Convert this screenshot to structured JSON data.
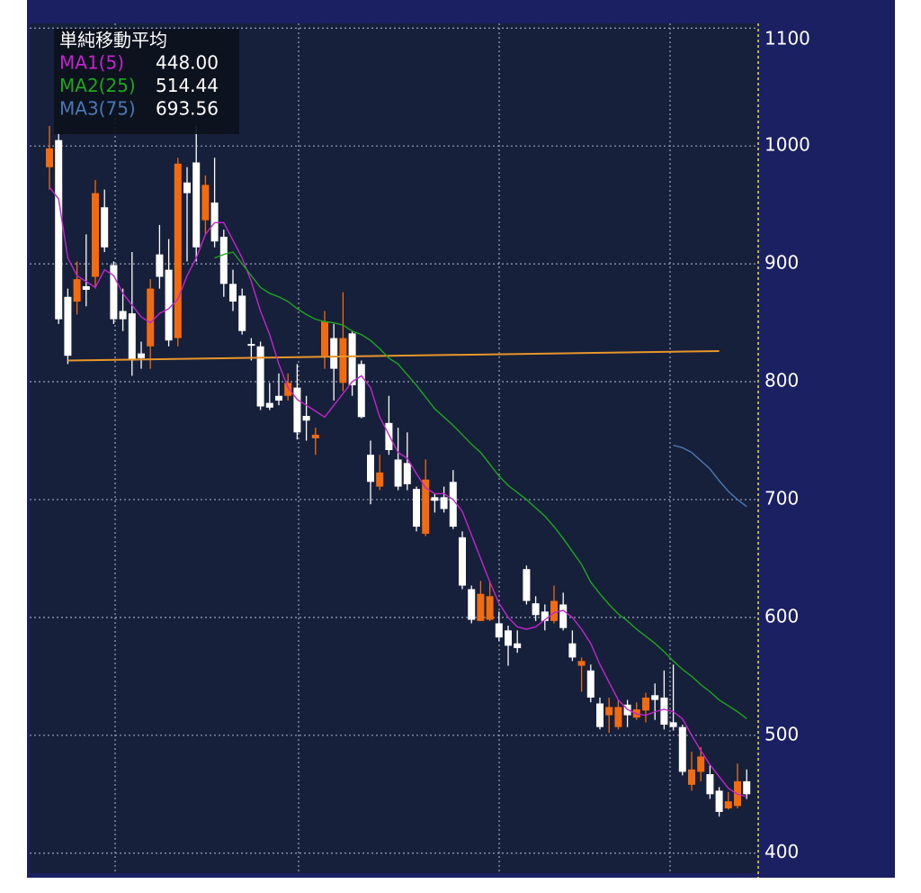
{
  "chart_data": {
    "type": "candlestick",
    "legend_title": "単純移動平均",
    "up_color": "#f26b0f",
    "down_color": "#ffffff",
    "ylim": [
      383,
      1104
    ],
    "yticks": [
      400,
      500,
      600,
      700,
      800,
      900,
      1000,
      1100
    ],
    "grid": true,
    "candles": {
      "open": [
        982,
        1005,
        872,
        868,
        881,
        889,
        948,
        899,
        860,
        858,
        824,
        830,
        908,
        895,
        837,
        969,
        986,
        937,
        952,
        923,
        883,
        873,
        832,
        830,
        782,
        788,
        788,
        795,
        771,
        752,
        822,
        837,
        799,
        841,
        815,
        738,
        711,
        765,
        734,
        731,
        709,
        671,
        702,
        702,
        715,
        668,
        624,
        597,
        598,
        595,
        589,
        578,
        641,
        612,
        605,
        597,
        611,
        578,
        559,
        555,
        527,
        517,
        507,
        526,
        515,
        521,
        534,
        532,
        511,
        507,
        458,
        469,
        467,
        453,
        438,
        440,
        461
      ],
      "high": [
        1017,
        1011,
        879,
        902,
        925,
        971,
        963,
        902,
        879,
        910,
        834,
        887,
        933,
        921,
        990,
        982,
        1017,
        975,
        990,
        929,
        895,
        879,
        837,
        834,
        799,
        807,
        807,
        815,
        788,
        761,
        860,
        849,
        876,
        843,
        818,
        750,
        738,
        788,
        761,
        757,
        711,
        734,
        705,
        711,
        725,
        673,
        627,
        631,
        631,
        605,
        593,
        589,
        644,
        618,
        611,
        627,
        621,
        589,
        566,
        560,
        532,
        532,
        530,
        530,
        528,
        536,
        544,
        555,
        560,
        509,
        486,
        490,
        475,
        456,
        452,
        476,
        471
      ],
      "low": [
        963,
        849,
        815,
        857,
        864,
        879,
        910,
        849,
        843,
        805,
        811,
        811,
        879,
        830,
        830,
        902,
        902,
        925,
        914,
        872,
        860,
        840,
        818,
        776,
        776,
        780,
        784,
        751,
        750,
        738,
        811,
        784,
        792,
        788,
        769,
        696,
        708,
        738,
        708,
        708,
        673,
        669,
        689,
        689,
        675,
        624,
        595,
        597,
        597,
        580,
        559,
        570,
        611,
        597,
        589,
        595,
        589,
        563,
        537,
        528,
        505,
        502,
        505,
        507,
        513,
        511,
        513,
        505,
        504,
        466,
        453,
        461,
        446,
        431,
        437,
        438,
        446
      ],
      "close": [
        998,
        853,
        822,
        887,
        878,
        960,
        914,
        853,
        853,
        818,
        820,
        879,
        889,
        835,
        985,
        960,
        914,
        967,
        919,
        883,
        868,
        843,
        831,
        779,
        778,
        784,
        799,
        757,
        767,
        755,
        851,
        811,
        837,
        797,
        770,
        715,
        723,
        742,
        711,
        713,
        677,
        717,
        699,
        692,
        677,
        627,
        598,
        620,
        618,
        583,
        576,
        574,
        614,
        602,
        597,
        614,
        591,
        566,
        563,
        532,
        507,
        524,
        524,
        517,
        522,
        532,
        530,
        509,
        507,
        469,
        471,
        482,
        450,
        435,
        444,
        461,
        450
      ]
    },
    "series": [
      {
        "name": "MA1(5)",
        "color": "#c424cc",
        "latest_label": "448.00",
        "values": [
          965,
          955,
          905,
          890,
          885,
          880,
          895,
          890,
          875,
          865,
          855,
          850,
          858,
          862,
          870,
          890,
          905,
          925,
          935,
          935,
          920,
          905,
          885,
          860,
          840,
          815,
          795,
          785,
          780,
          775,
          770,
          780,
          790,
          800,
          805,
          795,
          770,
          755,
          740,
          735,
          722,
          710,
          705,
          705,
          700,
          690,
          670,
          650,
          630,
          612,
          600,
          592,
          590,
          592,
          598,
          604,
          606,
          600,
          590,
          578,
          560,
          545,
          530,
          522,
          518,
          517,
          520,
          522,
          520,
          514,
          500,
          487,
          475,
          465,
          455,
          450,
          448
        ]
      },
      {
        "name": "MA2(25)",
        "color": "#1fa51f",
        "latest_label": "514.44",
        "values": [
          null,
          null,
          null,
          null,
          null,
          null,
          null,
          null,
          null,
          null,
          null,
          null,
          null,
          null,
          null,
          null,
          null,
          null,
          905,
          908,
          910,
          900,
          890,
          880,
          875,
          872,
          868,
          862,
          857,
          853,
          851,
          850,
          848,
          843,
          840,
          835,
          828,
          820,
          815,
          806,
          797,
          787,
          777,
          770,
          763,
          755,
          747,
          740,
          730,
          720,
          712,
          706,
          700,
          693,
          686,
          677,
          667,
          656,
          645,
          630,
          620,
          611,
          603,
          597,
          590,
          584,
          578,
          571,
          563,
          556,
          550,
          543,
          537,
          530,
          525,
          520,
          514
        ]
      },
      {
        "name": "MA3(75)",
        "color": "#4a78b5",
        "latest_label": "693.56",
        "values": [
          null,
          null,
          null,
          null,
          null,
          null,
          null,
          null,
          null,
          null,
          null,
          null,
          null,
          null,
          null,
          null,
          null,
          null,
          null,
          null,
          null,
          null,
          null,
          null,
          null,
          null,
          null,
          null,
          null,
          null,
          null,
          null,
          null,
          null,
          null,
          null,
          null,
          null,
          null,
          null,
          null,
          null,
          null,
          null,
          null,
          null,
          null,
          null,
          null,
          null,
          null,
          null,
          null,
          null,
          null,
          null,
          null,
          null,
          null,
          null,
          null,
          null,
          null,
          null,
          null,
          null,
          null,
          null,
          746,
          744,
          740,
          733,
          726,
          716,
          707,
          700,
          694
        ]
      }
    ],
    "trend_line": {
      "color": "#e8962a",
      "values": [
        818,
        826
      ]
    }
  }
}
